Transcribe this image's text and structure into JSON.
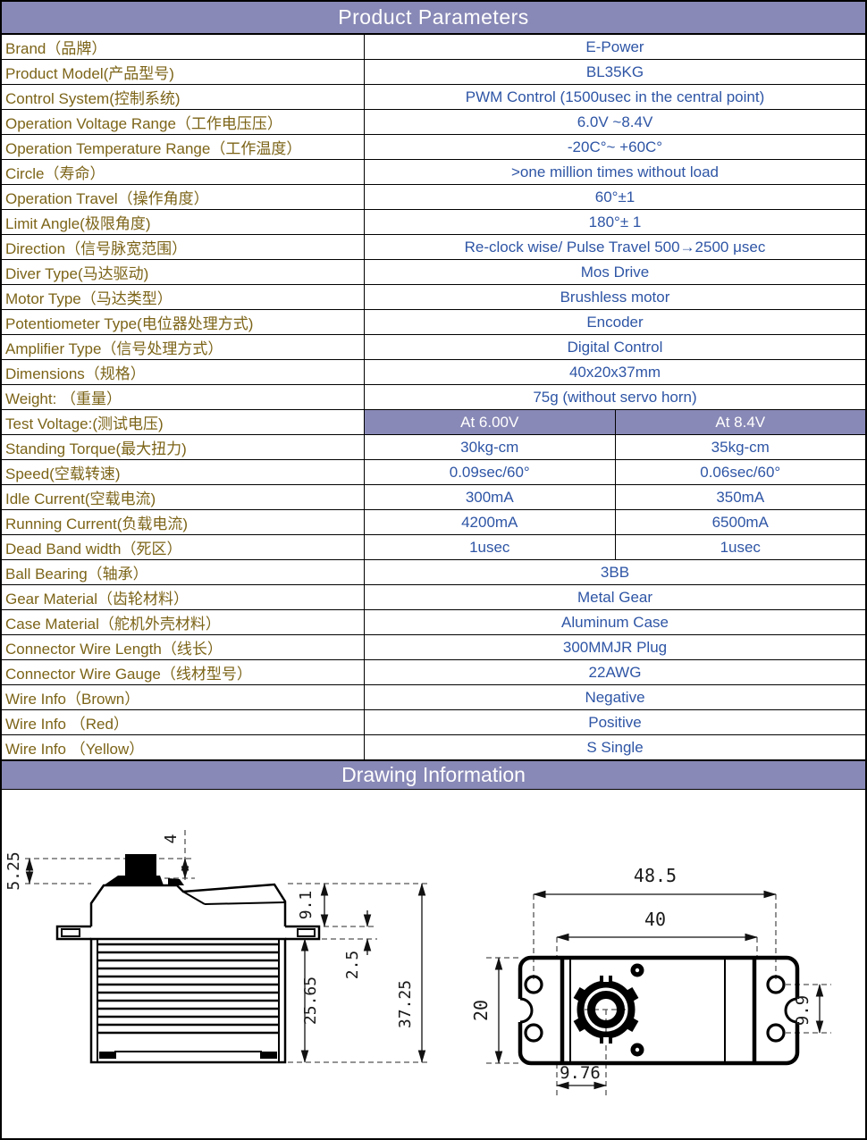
{
  "header": {
    "title": "Product Parameters"
  },
  "drawing_header": {
    "title": "Drawing Information"
  },
  "colors": {
    "header_bg": "#8989b7",
    "label_color": "#7c6418",
    "value_color": "#2e55a5",
    "border": "#000000"
  },
  "table": {
    "rows": [
      {
        "label": "Brand（品牌）",
        "value": "E-Power"
      },
      {
        "label": "Product Model(产品型号)",
        "value": "BL35KG"
      },
      {
        "label": "Control System(控制系统)",
        "value": "PWM Control (1500usec in the central point)"
      },
      {
        "label": "Operation Voltage Range（工作电压压）",
        "value": "6.0V ~8.4V"
      },
      {
        "label": "Operation Temperature Range（工作温度）",
        "value": "-20C°~ +60C°"
      },
      {
        "label": "Circle（寿命）",
        "value": ">one million times without load"
      },
      {
        "label": "Operation Travel（操作角度）",
        "value": "60°±1"
      },
      {
        "label": "Limit Angle(极限角度)",
        "value": "180°± 1"
      },
      {
        "label": "Direction（信号脉宽范围）",
        "value": "Re-clock wise/ Pulse Travel 500→2500 μsec"
      },
      {
        "label": "Diver Type(马达驱动)",
        "value": "Mos Drive"
      },
      {
        "label": "Motor Type（马达类型）",
        "value": "Brushless motor"
      },
      {
        "label": "Potentiometer Type(电位器处理方式)",
        "value": "Encoder"
      },
      {
        "label": "Amplifier Type（信号处理方式）",
        "value": "Digital Control"
      },
      {
        "label": "Dimensions（规格）",
        "value": "40x20x37mm"
      },
      {
        "label": "Weight: （重量）",
        "value": "75g (without servo horn)"
      },
      {
        "label": "Test Voltage:(测试电压)",
        "values": [
          "At 6.00V",
          "At 8.4V"
        ],
        "header_style": true
      },
      {
        "label": "Standing Torque(最大扭力)",
        "values": [
          "30kg-cm",
          "35kg-cm"
        ]
      },
      {
        "label": "Speed(空载转速)",
        "values": [
          "0.09sec/60°",
          "0.06sec/60°"
        ]
      },
      {
        "label": "Idle Current(空载电流)",
        "values": [
          "300mA",
          "350mA"
        ]
      },
      {
        "label": "Running Current(负载电流)",
        "values": [
          "4200mA",
          "6500mA"
        ]
      },
      {
        "label": "Dead Band width（死区）",
        "values": [
          "1usec",
          "1usec"
        ]
      },
      {
        "label": "Ball Bearing（轴承）",
        "value": "3BB"
      },
      {
        "label": "Gear Material（齿轮材料）",
        "value": "Metal Gear"
      },
      {
        "label": "Case Material（舵机外壳材料）",
        "value": "Aluminum Case"
      },
      {
        "label": "Connector Wire Length（线长）",
        "value": "300MMJR Plug"
      },
      {
        "label": "Connector Wire Gauge（线材型号）",
        "value": "22AWG"
      },
      {
        "label": "Wire Info（Brown）",
        "value": "Negative"
      },
      {
        "label": "Wire Info （Red）",
        "value": "Positive"
      },
      {
        "label": "Wire Info （Yellow）",
        "value": "S Single"
      }
    ]
  },
  "drawing": {
    "side_view": {
      "dims": {
        "shaft_height": "4",
        "top_offset": "5.25",
        "case_to_flange": "9.1",
        "flange_thickness": "2.5",
        "lower_body": "25.65",
        "total_height": "37.25"
      }
    },
    "top_view": {
      "dims": {
        "overall_length": "48.5",
        "body_length": "40",
        "body_width": "20",
        "hole_spacing": "9.9",
        "shaft_offset": "9.76"
      }
    }
  }
}
